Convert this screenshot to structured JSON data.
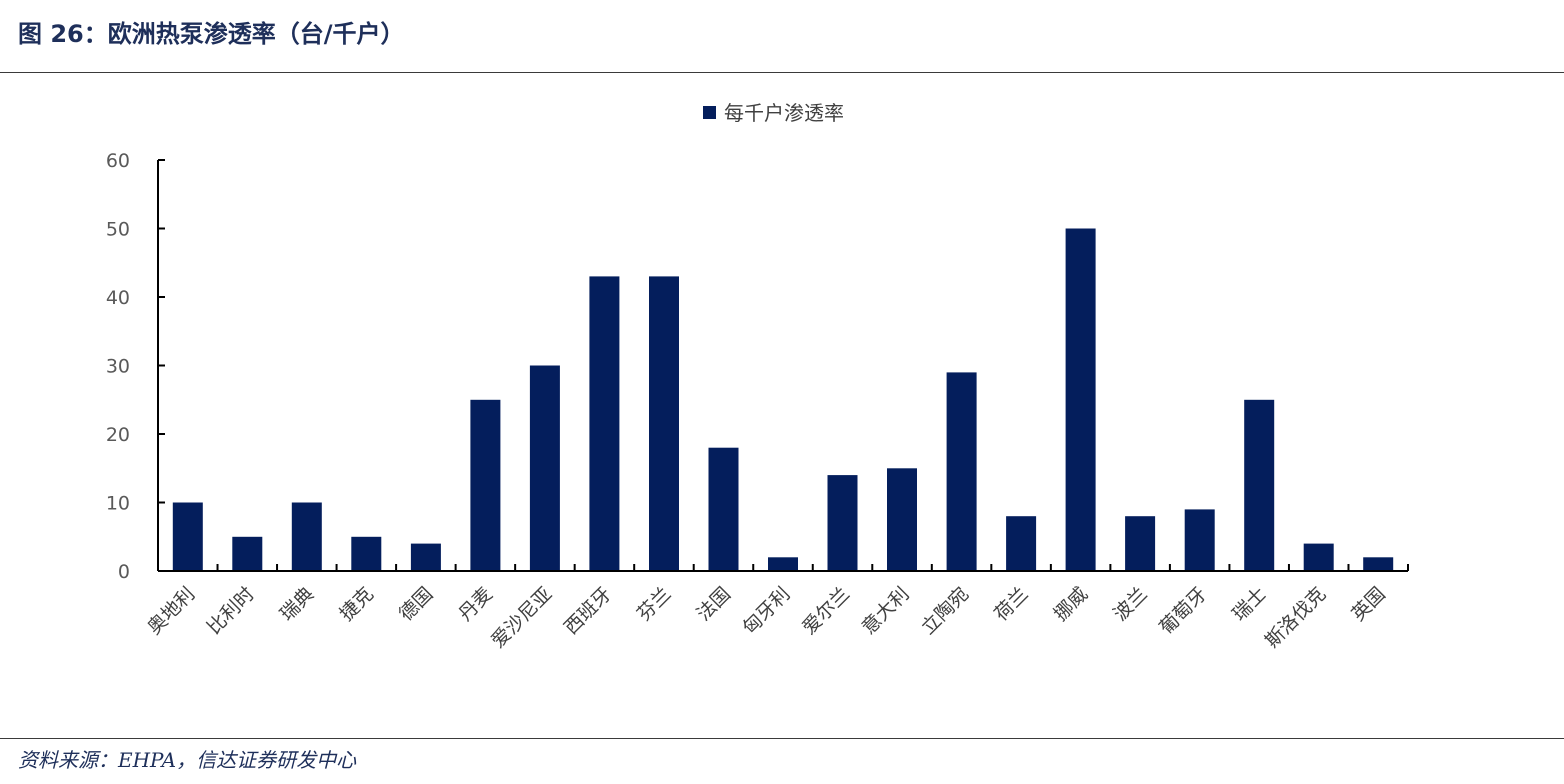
{
  "header": {
    "title": "图 26：欧洲热泵渗透率（台/千户）"
  },
  "footer": {
    "source": "资料来源：EHPA，信达证券研发中心"
  },
  "colors": {
    "bar": "#041e5c",
    "title": "#1e2f5a"
  },
  "chart_data": {
    "type": "bar",
    "title": "",
    "xlabel": "",
    "ylabel": "",
    "ylim": [
      0,
      60
    ],
    "yticks": [
      0,
      10,
      20,
      30,
      40,
      50,
      60
    ],
    "grid": false,
    "legend_position": "top-center",
    "categories": [
      "奥地利",
      "比利时",
      "瑞典",
      "捷克",
      "德国",
      "丹麦",
      "爱沙尼亚",
      "西班牙",
      "芬兰",
      "法国",
      "匈牙利",
      "爱尔兰",
      "意大利",
      "立陶宛",
      "荷兰",
      "挪威",
      "波兰",
      "葡萄牙",
      "瑞士",
      "斯洛伐克",
      "英国"
    ],
    "series": [
      {
        "name": "每千户渗透率",
        "values": [
          10,
          5,
          10,
          5,
          4,
          25,
          30,
          43,
          43,
          18,
          2,
          14,
          15,
          29,
          8,
          50,
          8,
          9,
          25,
          4,
          2
        ]
      }
    ]
  }
}
